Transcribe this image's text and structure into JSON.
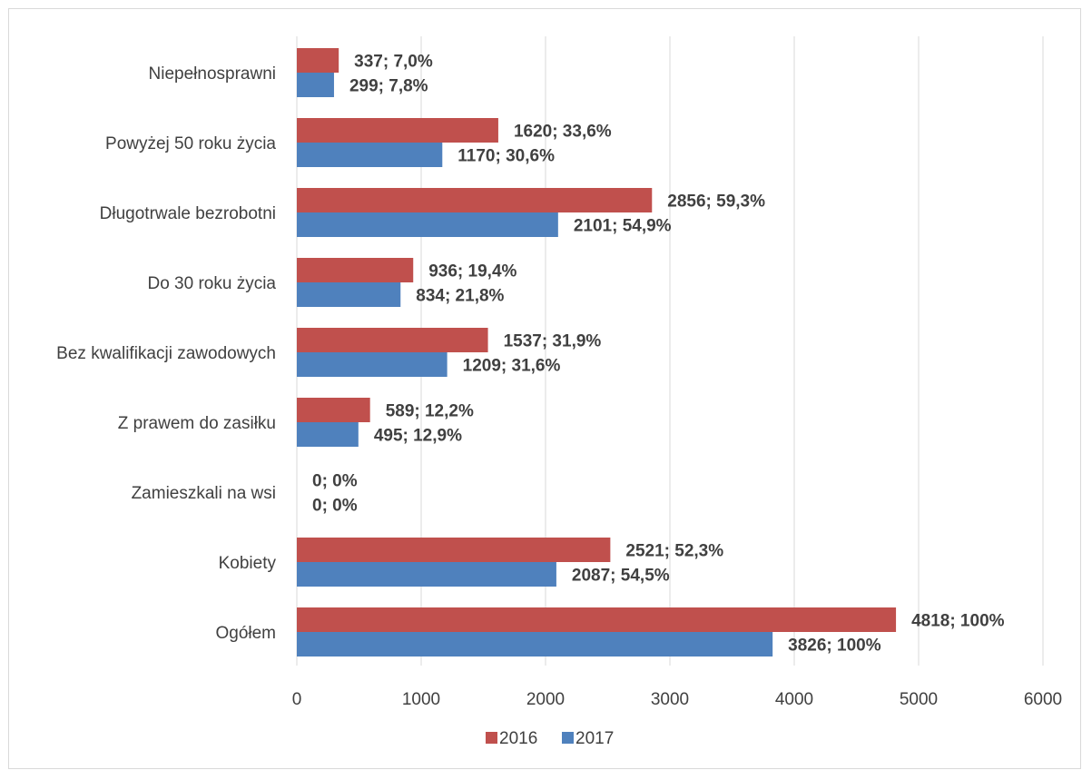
{
  "chart_data": {
    "type": "bar",
    "orientation": "horizontal",
    "title": "",
    "xlabel": "",
    "ylabel": "",
    "categories": [
      "Niepełnosprawni",
      "Powyżej 50 roku życia",
      "Długotrwale bezrobotni",
      "Do 30 roku życia",
      "Bez kwalifikacji zawodowych",
      "Z prawem do zasiłku",
      "Zamieszkali na wsi",
      "Kobiety",
      "Ogółem"
    ],
    "series": [
      {
        "name": "2016",
        "color": "#c0504d",
        "values": [
          337,
          1620,
          2856,
          936,
          1537,
          589,
          0,
          2521,
          4818
        ],
        "labels": [
          "337;  7,0%",
          "1620;  33,6%",
          "2856;  59,3%",
          "936;  19,4%",
          "1537;  31,9%",
          "589;  12,2%",
          "0;  0%",
          "2521;  52,3%",
          "4818;  100%"
        ]
      },
      {
        "name": "2017",
        "color": "#4f81bd",
        "values": [
          299,
          1170,
          2101,
          834,
          1209,
          495,
          0,
          2087,
          3826
        ],
        "labels": [
          "299;  7,8%",
          "1170;  30,6%",
          "2101;  54,9%",
          "834;  21,8%",
          "1209;  31,6%",
          "495;  12,9%",
          "0;  0%",
          "2087;  54,5%",
          "3826;  100%"
        ]
      }
    ],
    "xlim": [
      0,
      6000
    ],
    "xticks": [
      "0",
      "1000",
      "2000",
      "3000",
      "4000",
      "5000",
      "6000"
    ],
    "grid": true,
    "legend_position": "bottom"
  }
}
